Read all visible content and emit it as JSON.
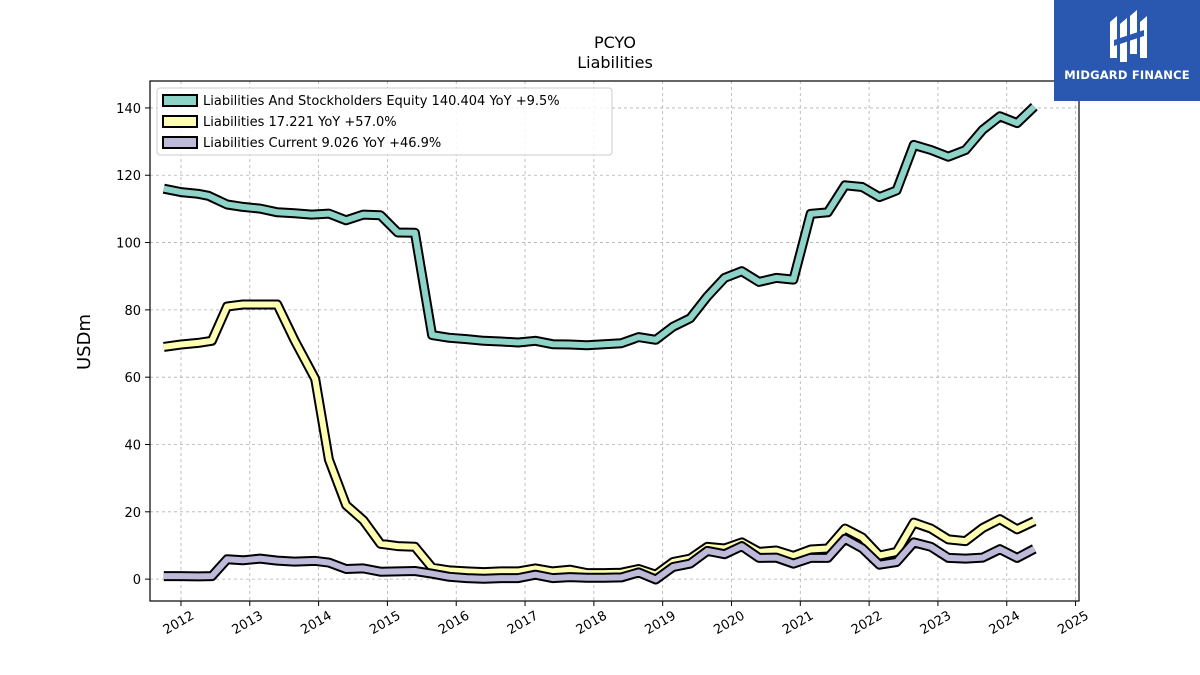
{
  "chart_data": {
    "type": "line",
    "title": "PCYO",
    "subtitle": "Liabilities",
    "ylabel": "USDm",
    "xlabel": "",
    "ylim": [
      -6.5,
      148
    ],
    "xlim": [
      2011.55,
      2025.05
    ],
    "yticks": [
      0,
      20,
      40,
      60,
      80,
      100,
      120,
      140
    ],
    "xticks": [
      2012,
      2013,
      2014,
      2015,
      2016,
      2017,
      2018,
      2019,
      2020,
      2021,
      2022,
      2023,
      2024,
      2025
    ],
    "grid": true,
    "legend_position": "top-left",
    "series": [
      {
        "name": "Liabilities And Stockholders Equity  140.404 YoY +9.5%",
        "color": "#8dd3c7",
        "x": [
          2011.75,
          2012.0,
          2012.25,
          2012.4,
          2012.67,
          2012.9,
          2013.15,
          2013.4,
          2013.65,
          2013.9,
          2014.15,
          2014.4,
          2014.65,
          2014.9,
          2015.15,
          2015.4,
          2015.65,
          2015.9,
          2016.15,
          2016.4,
          2016.65,
          2016.9,
          2017.15,
          2017.4,
          2017.65,
          2017.9,
          2018.15,
          2018.4,
          2018.65,
          2018.9,
          2019.15,
          2019.4,
          2019.65,
          2019.9,
          2020.15,
          2020.4,
          2020.65,
          2020.9,
          2021.15,
          2021.4,
          2021.65,
          2021.9,
          2022.15,
          2022.4,
          2022.65,
          2022.9,
          2023.15,
          2023.4,
          2023.65,
          2023.9,
          2024.15,
          2024.4
        ],
        "values": [
          116.0,
          115.0,
          114.5,
          113.9,
          111.3,
          110.6,
          110.1,
          109.0,
          108.7,
          108.3,
          108.6,
          106.6,
          108.3,
          108.1,
          103.0,
          102.9,
          72.5,
          71.7,
          71.3,
          70.8,
          70.6,
          70.3,
          70.8,
          69.8,
          69.7,
          69.5,
          69.8,
          70.1,
          71.9,
          71.1,
          75.0,
          77.5,
          84.0,
          89.5,
          91.5,
          88.3,
          89.5,
          89.0,
          108.5,
          109.0,
          117.0,
          116.5,
          113.5,
          115.5,
          129.0,
          127.5,
          125.5,
          127.5,
          133.5,
          137.5,
          135.5,
          140.4
        ]
      },
      {
        "name": "Liabilities  17.221 YoY +57.0%",
        "color": "#ffffb3",
        "x": [
          2011.75,
          2012.0,
          2012.25,
          2012.45,
          2012.67,
          2012.9,
          2013.15,
          2013.4,
          2013.65,
          2013.95,
          2014.15,
          2014.4,
          2014.65,
          2014.9,
          2015.15,
          2015.4,
          2015.65,
          2015.9,
          2016.15,
          2016.4,
          2016.65,
          2016.9,
          2017.15,
          2017.4,
          2017.65,
          2017.9,
          2018.15,
          2018.4,
          2018.65,
          2018.9,
          2019.15,
          2019.4,
          2019.65,
          2019.9,
          2020.15,
          2020.4,
          2020.65,
          2020.9,
          2021.15,
          2021.4,
          2021.65,
          2021.9,
          2022.15,
          2022.4,
          2022.65,
          2022.9,
          2023.15,
          2023.4,
          2023.65,
          2023.9,
          2024.15,
          2024.4
        ],
        "values": [
          69.0,
          69.7,
          70.2,
          70.8,
          81.0,
          81.6,
          81.6,
          81.6,
          71.0,
          59.5,
          35.5,
          22.0,
          17.5,
          10.5,
          9.8,
          9.6,
          3.4,
          2.6,
          2.3,
          2.1,
          2.3,
          2.3,
          3.2,
          2.3,
          2.8,
          1.8,
          1.8,
          1.9,
          3.0,
          1.3,
          5.1,
          6.1,
          9.6,
          9.1,
          10.9,
          8.1,
          8.5,
          6.9,
          8.8,
          9.1,
          15.0,
          12.4,
          7.0,
          8.1,
          16.8,
          15.0,
          11.8,
          11.3,
          15.2,
          17.8,
          14.8,
          17.2
        ]
      },
      {
        "name": "Liabilities Current  9.026 YoY +46.9%",
        "color": "#bebada",
        "x": [
          2011.75,
          2012.0,
          2012.25,
          2012.45,
          2012.67,
          2012.9,
          2013.15,
          2013.4,
          2013.65,
          2013.95,
          2014.15,
          2014.4,
          2014.65,
          2014.9,
          2015.15,
          2015.4,
          2015.65,
          2015.9,
          2016.15,
          2016.4,
          2016.65,
          2016.9,
          2017.15,
          2017.4,
          2017.65,
          2017.9,
          2018.15,
          2018.4,
          2018.65,
          2018.9,
          2019.15,
          2019.4,
          2019.65,
          2019.9,
          2020.15,
          2020.4,
          2020.65,
          2020.9,
          2021.15,
          2021.4,
          2021.65,
          2021.9,
          2022.15,
          2022.4,
          2022.65,
          2022.9,
          2023.15,
          2023.4,
          2023.65,
          2023.9,
          2024.15,
          2024.4
        ],
        "values": [
          0.9,
          0.9,
          0.8,
          0.9,
          5.9,
          5.6,
          6.1,
          5.5,
          5.2,
          5.4,
          4.9,
          3.0,
          3.2,
          2.2,
          2.3,
          2.4,
          1.6,
          0.7,
          0.3,
          0.1,
          0.3,
          0.3,
          1.3,
          0.3,
          0.6,
          0.4,
          0.4,
          0.5,
          2.0,
          -0.1,
          3.6,
          4.6,
          8.4,
          7.4,
          9.8,
          6.3,
          6.4,
          4.6,
          6.3,
          6.3,
          12.0,
          9.2,
          4.3,
          5.1,
          10.9,
          9.6,
          6.3,
          6.1,
          6.4,
          8.9,
          6.3,
          9.0
        ]
      }
    ]
  },
  "logo": {
    "text": "MIDGARD FINANCE"
  }
}
